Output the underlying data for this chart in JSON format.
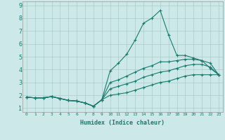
{
  "title": "",
  "xlabel": "Humidex (Indice chaleur)",
  "ylabel": "",
  "background_color": "#cce8e8",
  "grid_color": "#aacccc",
  "line_color": "#1a7a6e",
  "xlim": [
    -0.5,
    23.5
  ],
  "ylim": [
    0.7,
    9.3
  ],
  "xtick_labels": [
    "0",
    "1",
    "2",
    "3",
    "4",
    "5",
    "6",
    "7",
    "8",
    "9",
    "10",
    "11",
    "12",
    "13",
    "14",
    "15",
    "16",
    "17",
    "18",
    "19",
    "20",
    "21",
    "22",
    "23"
  ],
  "xtick_vals": [
    0,
    1,
    2,
    3,
    4,
    5,
    6,
    7,
    8,
    9,
    10,
    11,
    12,
    13,
    14,
    15,
    16,
    17,
    18,
    19,
    20,
    21,
    22,
    23
  ],
  "yticks": [
    1,
    2,
    3,
    4,
    5,
    6,
    7,
    8,
    9
  ],
  "lines": [
    {
      "x": [
        0,
        1,
        2,
        3,
        4,
        5,
        6,
        7,
        8,
        9,
        10,
        11,
        12,
        13,
        14,
        15,
        16,
        17,
        18,
        19,
        20,
        21,
        22,
        23
      ],
      "y": [
        1.85,
        1.8,
        1.8,
        1.9,
        1.75,
        1.6,
        1.55,
        1.4,
        1.15,
        1.65,
        3.9,
        4.5,
        5.2,
        6.3,
        7.6,
        8.0,
        8.6,
        6.7,
        5.1,
        5.1,
        4.9,
        4.7,
        4.1,
        3.6
      ]
    },
    {
      "x": [
        0,
        1,
        2,
        3,
        4,
        5,
        6,
        7,
        8,
        9,
        10,
        11,
        12,
        13,
        14,
        15,
        16,
        17,
        18,
        19,
        20,
        21,
        22,
        23
      ],
      "y": [
        1.85,
        1.8,
        1.8,
        1.9,
        1.75,
        1.6,
        1.55,
        1.4,
        1.15,
        1.65,
        3.0,
        3.2,
        3.5,
        3.8,
        4.1,
        4.3,
        4.6,
        4.6,
        4.7,
        4.8,
        4.8,
        4.7,
        4.5,
        3.6
      ]
    },
    {
      "x": [
        0,
        1,
        2,
        3,
        4,
        5,
        6,
        7,
        8,
        9,
        10,
        11,
        12,
        13,
        14,
        15,
        16,
        17,
        18,
        19,
        20,
        21,
        22,
        23
      ],
      "y": [
        1.85,
        1.8,
        1.8,
        1.9,
        1.75,
        1.6,
        1.55,
        1.4,
        1.15,
        1.65,
        2.5,
        2.7,
        2.9,
        3.1,
        3.4,
        3.6,
        3.8,
        3.9,
        4.1,
        4.3,
        4.4,
        4.4,
        4.2,
        3.6
      ]
    },
    {
      "x": [
        0,
        1,
        2,
        3,
        4,
        5,
        6,
        7,
        8,
        9,
        10,
        11,
        12,
        13,
        14,
        15,
        16,
        17,
        18,
        19,
        20,
        21,
        22,
        23
      ],
      "y": [
        1.85,
        1.8,
        1.8,
        1.9,
        1.75,
        1.6,
        1.55,
        1.4,
        1.15,
        1.65,
        2.0,
        2.1,
        2.2,
        2.4,
        2.6,
        2.8,
        3.0,
        3.1,
        3.3,
        3.5,
        3.6,
        3.6,
        3.6,
        3.6
      ]
    }
  ]
}
